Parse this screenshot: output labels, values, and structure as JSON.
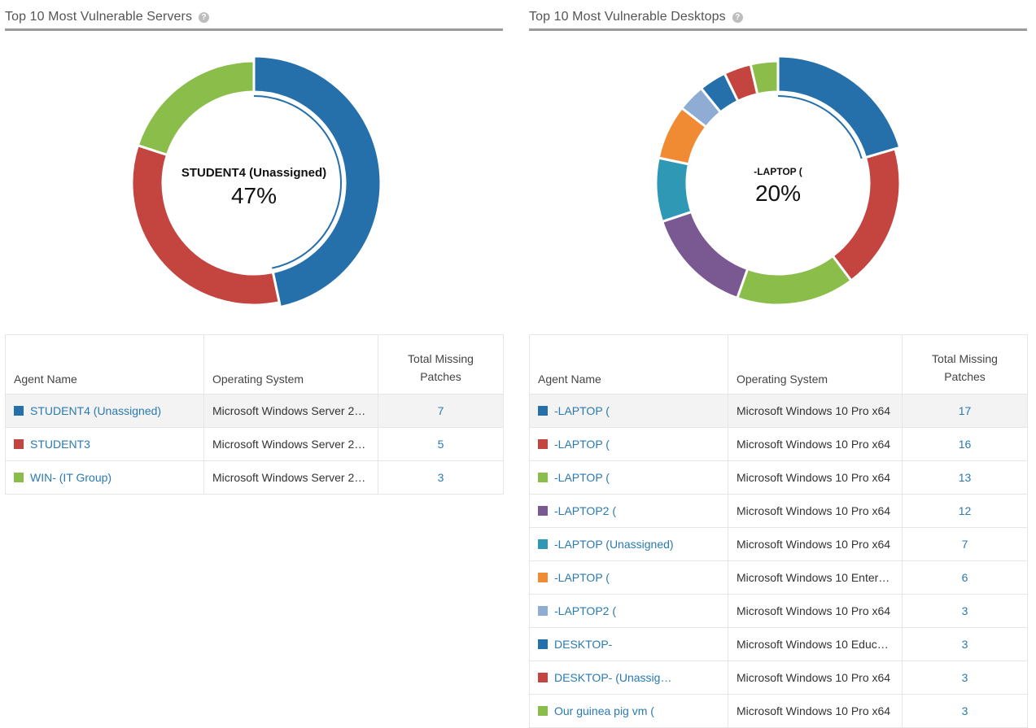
{
  "servers": {
    "title": "Top 10 Most Vulnerable Servers",
    "center_name": "STUDENT4 (Unassigned)",
    "center_pct": "47%",
    "columns": {
      "agent": "Agent Name",
      "os": "Operating System",
      "missing": "Total Missing Patches"
    },
    "rows": [
      {
        "agent": "STUDENT4 (Unassigned)",
        "os": "Microsoft Windows Server 2…",
        "missing": "7",
        "color": "#2570ab"
      },
      {
        "agent": "STUDENT3",
        "os": "Microsoft Windows Server 2…",
        "missing": "5",
        "color": "#c4443f"
      },
      {
        "agent": "WIN- (IT Group)",
        "os": "Microsoft Windows Server 2…",
        "missing": "3",
        "color": "#8bbd4b"
      }
    ]
  },
  "desktops": {
    "title": "Top 10 Most Vulnerable Desktops",
    "center_name": "-LAPTOP (",
    "center_pct": "20%",
    "columns": {
      "agent": "Agent Name",
      "os": "Operating System",
      "missing": "Total Missing Patches"
    },
    "rows": [
      {
        "agent": "-LAPTOP (",
        "os": "Microsoft Windows 10 Pro x64",
        "missing": "17",
        "color": "#2570ab"
      },
      {
        "agent": "-LAPTOP (",
        "os": "Microsoft Windows 10 Pro x64",
        "missing": "16",
        "color": "#c4443f"
      },
      {
        "agent": "-LAPTOP (",
        "os": "Microsoft Windows 10 Pro x64",
        "missing": "13",
        "color": "#8bbd4b"
      },
      {
        "agent": "-LAPTOP2 (",
        "os": "Microsoft Windows 10 Pro x64",
        "missing": "12",
        "color": "#7a5891"
      },
      {
        "agent": "-LAPTOP (Unassigned)",
        "os": "Microsoft Windows 10 Pro x64",
        "missing": "7",
        "color": "#2f99b5"
      },
      {
        "agent": "-LAPTOP (",
        "os": "Microsoft Windows 10 Enter…",
        "missing": "6",
        "color": "#f08a33"
      },
      {
        "agent": "-LAPTOP2 (",
        "os": "Microsoft Windows 10 Pro x64",
        "missing": "3",
        "color": "#8fadd4"
      },
      {
        "agent": "DESKTOP-",
        "os": "Microsoft Windows 10 Educ…",
        "missing": "3",
        "color": "#2570ab"
      },
      {
        "agent": "DESKTOP- (Unassig…",
        "os": "Microsoft Windows 10 Pro x64",
        "missing": "3",
        "color": "#c4443f"
      },
      {
        "agent": "Our guinea pig vm (",
        "os": "Microsoft Windows 10 Pro x64",
        "missing": "3",
        "color": "#8bbd4b"
      }
    ]
  }
}
